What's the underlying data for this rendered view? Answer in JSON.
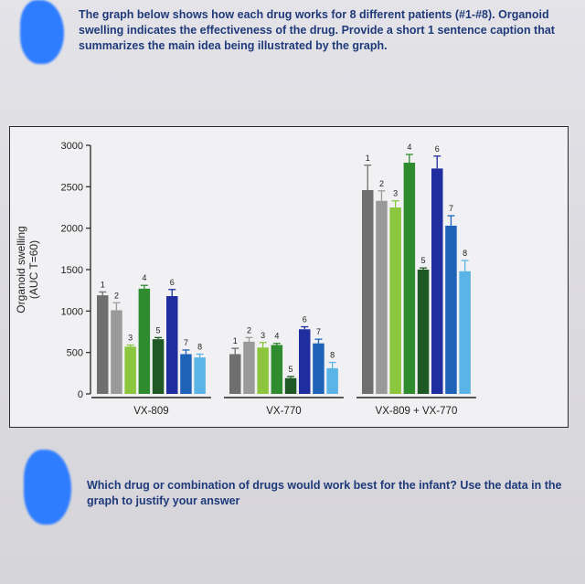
{
  "instructions": {
    "top": "The graph below shows how each drug works for 8 different patients (#1-#8). Organoid swelling indicates the effectiveness of the drug. Provide a short 1 sentence caption that summarizes the main idea being illustrated by the graph.",
    "bottom": "Which drug or combination of drugs would work best for the infant? Use the data in the graph to justify your answer"
  },
  "chart_data": {
    "type": "bar",
    "ylabel_line1": "Organoid swelling",
    "ylabel_line2": "(AUC T=60)",
    "ylim": [
      0,
      3000
    ],
    "yticks": [
      0,
      500,
      1000,
      1500,
      2000,
      2500,
      3000
    ],
    "bar_labels": [
      "1",
      "2",
      "3",
      "4",
      "5",
      "6",
      "7",
      "8"
    ],
    "colors": [
      "#6f6f6f",
      "#9a9a9a",
      "#8cc63f",
      "#2e8b2e",
      "#1f5a24",
      "#1f2d9e",
      "#1e63b8",
      "#5ab4e6"
    ],
    "groups": [
      {
        "name": "VX-809",
        "values": [
          1190,
          1010,
          570,
          1270,
          660,
          1180,
          480,
          440
        ],
        "errors": [
          40,
          90,
          20,
          40,
          20,
          80,
          50,
          40
        ]
      },
      {
        "name": "VX-770",
        "values": [
          480,
          630,
          560,
          590,
          190,
          780,
          610,
          310
        ],
        "errors": [
          70,
          50,
          60,
          20,
          20,
          30,
          50,
          70
        ]
      },
      {
        "name": "VX-809 + VX-770",
        "values": [
          2460,
          2330,
          2250,
          2790,
          1500,
          2720,
          2030,
          1480
        ],
        "errors": [
          300,
          120,
          80,
          100,
          20,
          150,
          120,
          130
        ]
      }
    ]
  }
}
